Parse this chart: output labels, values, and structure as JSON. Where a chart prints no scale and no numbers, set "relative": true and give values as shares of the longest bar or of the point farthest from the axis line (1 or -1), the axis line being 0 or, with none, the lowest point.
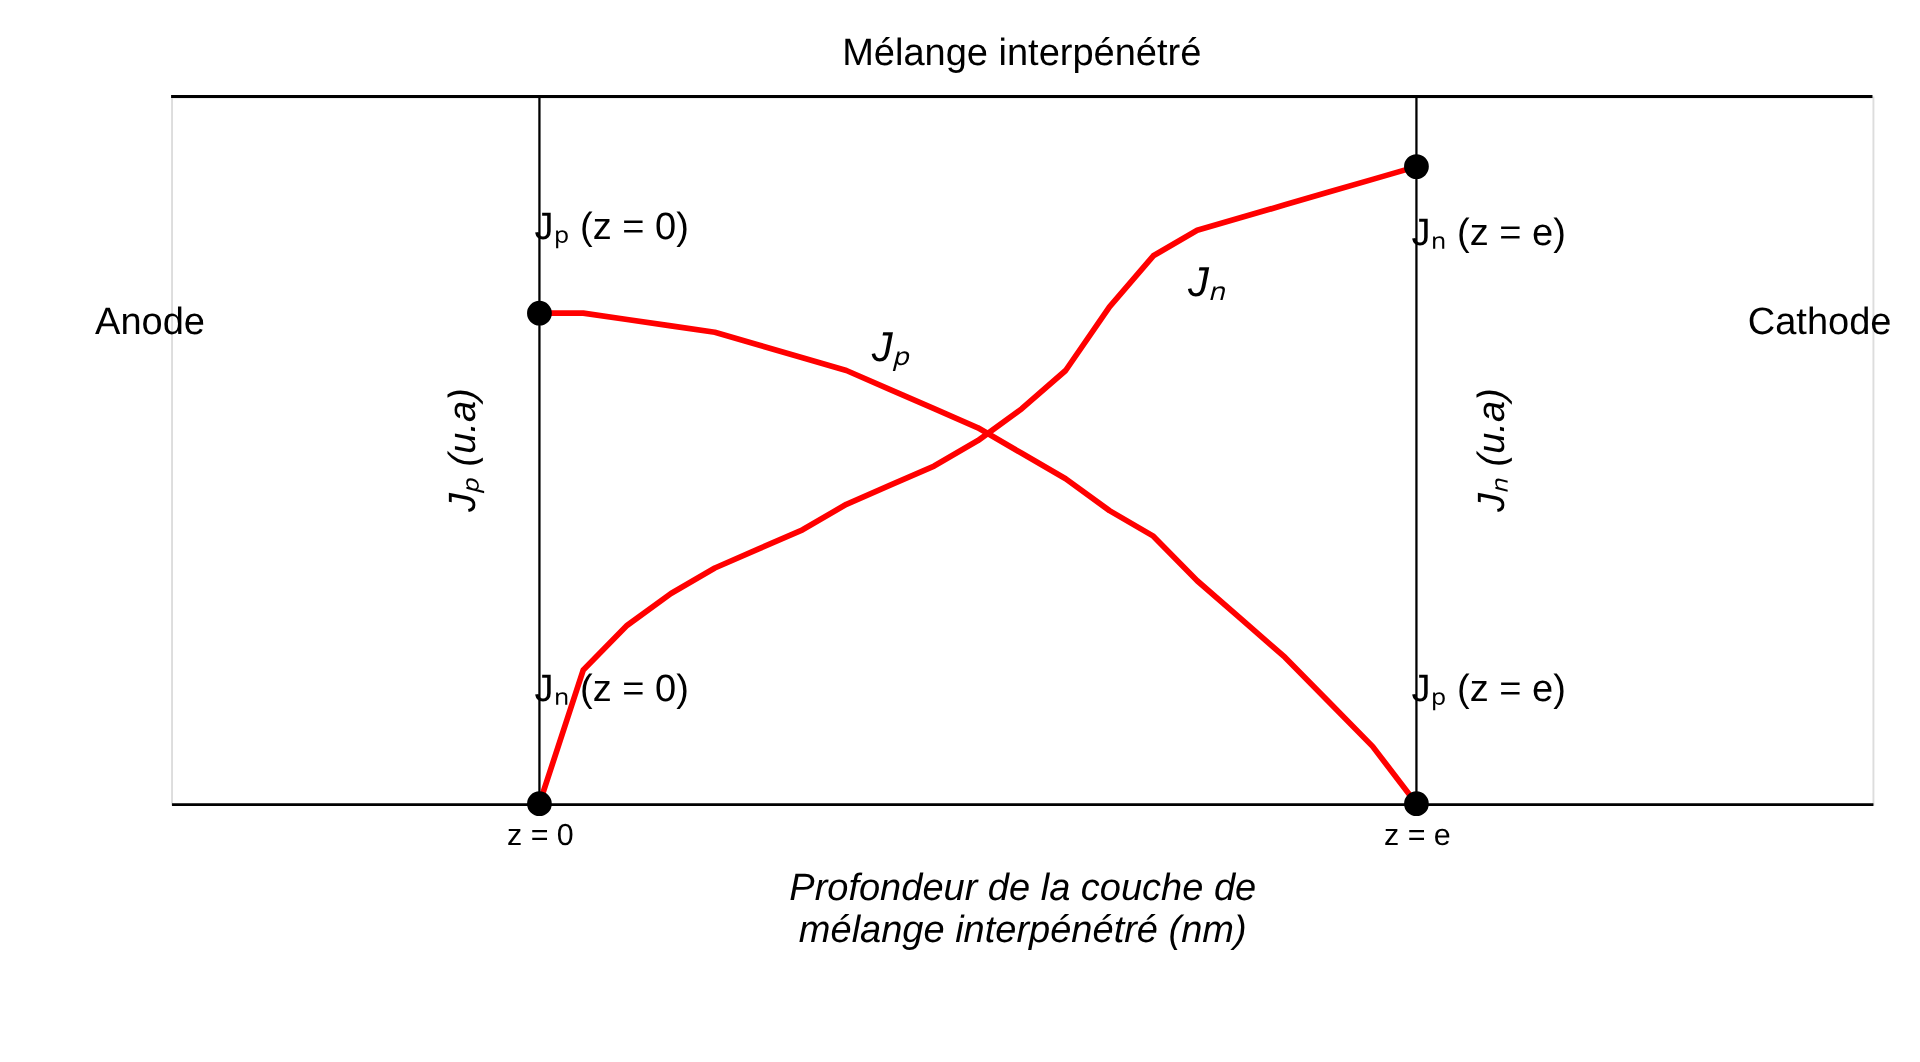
{
  "chart_data": {
    "type": "line",
    "title": "Mélange interpénétré",
    "xlabel": "Profondeur de la couche de mélange interpénétré (nm)",
    "ylabel": "Jₚ (u.a)",
    "y2label": "Jₙ (u.a)",
    "relative": true,
    "grid": "x",
    "marker": "none",
    "line_style": "solid",
    "categories": [
      "z = 0",
      null,
      null,
      null,
      null,
      null,
      null,
      null,
      null,
      null,
      null,
      null,
      null,
      null,
      null,
      null,
      null,
      null,
      null,
      null,
      "z = e"
    ],
    "series": [
      {
        "name": "Jₚ",
        "color": "#ff0000",
        "values": [
          0.77,
          0.77,
          0.76,
          0.75,
          0.74,
          0.72,
          0.7,
          0.68,
          0.65,
          0.62,
          0.59,
          0.55,
          0.51,
          0.46,
          0.42,
          0.35,
          0.29,
          0.23,
          0.16,
          0.09,
          0
        ]
      },
      {
        "name": "Jₙ",
        "color": "#ff0000",
        "values": [
          0,
          0.21,
          0.28,
          0.33,
          0.37,
          0.4,
          0.43,
          0.47,
          0.5,
          0.53,
          0.57,
          0.62,
          0.68,
          0.78,
          0.86,
          0.9,
          0.92,
          0.94,
          0.96,
          0.98,
          1
        ]
      },
      {
        "type": "scatter",
        "marker": "circle",
        "color": "#000000",
        "values": [
          0.77,
          null,
          null,
          null,
          null,
          null,
          null,
          null,
          null,
          null,
          null,
          null,
          null,
          null,
          null,
          null,
          null,
          null,
          null,
          null,
          1
        ]
      },
      {
        "type": "scatter",
        "marker": "circle",
        "color": "#000000",
        "values": [
          0,
          null,
          null,
          null,
          null,
          null,
          null,
          null,
          null,
          null,
          null,
          null,
          null,
          null,
          null,
          null,
          null,
          null,
          null,
          null,
          0
        ]
      }
    ],
    "annotations": [
      {
        "text": "Jₚ (z = 0)",
        "x": "z = 0",
        "y": 0.77
      },
      {
        "text": "Jₙ (z = e)",
        "x": "z = e",
        "y": 1
      },
      {
        "text": "Jₙ (z = 0)",
        "x": "z = 0",
        "y": 0
      },
      {
        "text": "Jₚ (z = e)",
        "x": "z = e",
        "y": 0
      },
      "Anode",
      "Cathode"
    ]
  }
}
